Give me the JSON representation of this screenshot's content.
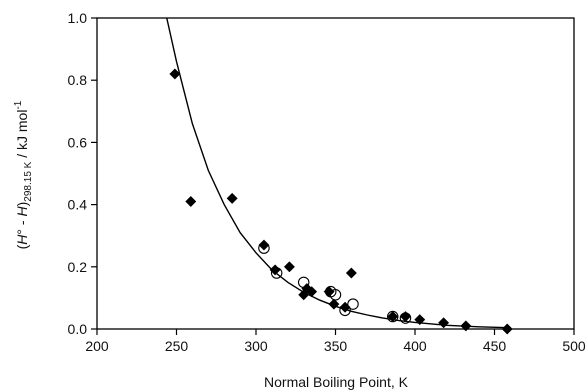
{
  "chart_data": {
    "type": "scatter",
    "title": "",
    "xlabel": "Normal Boiling Point, K",
    "ylabel": {
      "open_paren": "(",
      "H1": "H",
      "degree": "°",
      "minus": " - ",
      "H2": "H",
      "close_paren": ")",
      "subscript": "298.15 K",
      "unit": " / kJ mol",
      "superscript": "-1"
    },
    "xlim": [
      200,
      500
    ],
    "ylim": [
      0.0,
      1.0
    ],
    "x_ticks": [
      "200",
      "250",
      "300",
      "350",
      "400",
      "450",
      "500"
    ],
    "y_ticks": [
      "0.0",
      "0.2",
      "0.4",
      "0.6",
      "0.8",
      "1.0"
    ],
    "grid": false,
    "series": [
      {
        "marker": "filled-diamond",
        "color": "#000000",
        "points": [
          [
            249,
            0.82
          ],
          [
            259,
            0.41
          ],
          [
            285,
            0.42
          ],
          [
            305,
            0.27
          ],
          [
            312,
            0.19
          ],
          [
            321,
            0.2
          ],
          [
            330,
            0.11
          ],
          [
            332,
            0.13
          ],
          [
            335,
            0.12
          ],
          [
            346,
            0.12
          ],
          [
            349,
            0.08
          ],
          [
            356,
            0.07
          ],
          [
            360,
            0.18
          ],
          [
            386,
            0.04
          ],
          [
            394,
            0.04
          ],
          [
            403,
            0.03
          ],
          [
            418,
            0.02
          ],
          [
            432,
            0.01
          ],
          [
            458,
            0.0
          ]
        ]
      },
      {
        "marker": "open-circle",
        "color": "#000000",
        "points": [
          [
            305,
            0.26
          ],
          [
            313,
            0.18
          ],
          [
            330,
            0.15
          ],
          [
            347,
            0.12
          ],
          [
            350,
            0.11
          ],
          [
            356,
            0.06
          ],
          [
            361,
            0.08
          ],
          [
            386,
            0.04
          ],
          [
            394,
            0.035
          ]
        ]
      },
      {
        "type": "line",
        "color": "#000000",
        "curve": "exponential fit",
        "points": [
          [
            243,
            1.02
          ],
          [
            250,
            0.86
          ],
          [
            260,
            0.66
          ],
          [
            270,
            0.51
          ],
          [
            280,
            0.4
          ],
          [
            290,
            0.31
          ],
          [
            300,
            0.245
          ],
          [
            310,
            0.19
          ],
          [
            320,
            0.15
          ],
          [
            330,
            0.118
          ],
          [
            340,
            0.093
          ],
          [
            350,
            0.073
          ],
          [
            360,
            0.057
          ],
          [
            370,
            0.045
          ],
          [
            380,
            0.035
          ],
          [
            390,
            0.027
          ],
          [
            400,
            0.021
          ],
          [
            420,
            0.012
          ],
          [
            440,
            0.007
          ],
          [
            460,
            0.004
          ]
        ]
      }
    ]
  }
}
